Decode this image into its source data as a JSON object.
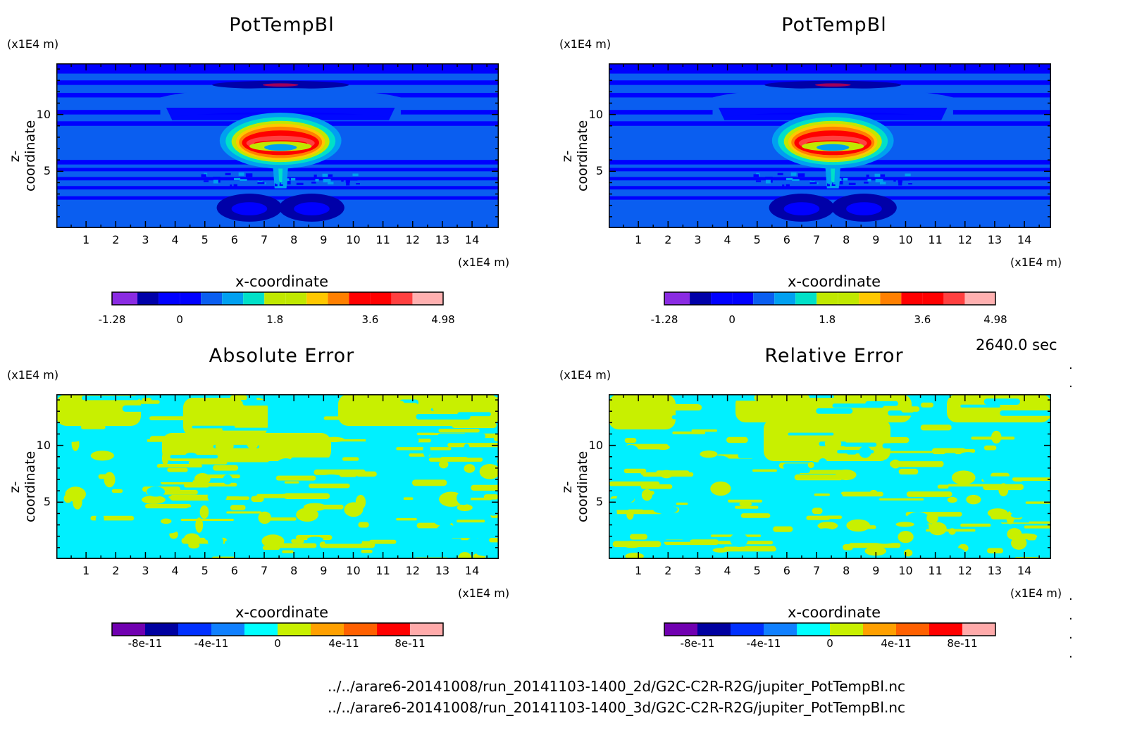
{
  "chart_data": [
    {
      "type": "heatmap",
      "title": "PotTempBl",
      "xlabel": "x-coordinate",
      "ylabel": "z-coordinate",
      "x_unit": "(x1E4 m)",
      "y_unit": "(x1E4 m)",
      "xlim": [
        0,
        14.9
      ],
      "ylim": [
        0,
        14.5
      ],
      "xticks": [
        1,
        2,
        3,
        4,
        5,
        6,
        7,
        8,
        9,
        10,
        11,
        12,
        13,
        14
      ],
      "yticks": [
        5,
        10
      ],
      "colorbar": {
        "levels": [
          -1.28,
          -0.8,
          -0.4,
          0,
          0.4,
          0.8,
          1.2,
          1.6,
          2.0,
          2.4,
          2.8,
          3.2,
          3.6,
          4.0,
          4.4,
          4.98
        ],
        "labels": [
          "-1.28",
          "0",
          "1.8",
          "3.6",
          "4.98"
        ],
        "label_values": [
          -1.28,
          0,
          1.8,
          3.6,
          4.98
        ]
      },
      "features": {
        "plume_center_x": 7.55,
        "plume_cap_z": 7.8,
        "plume_stem_z": [
          4,
          7
        ],
        "max": 4.98,
        "min": -1.28
      }
    },
    {
      "type": "heatmap",
      "title": "PotTempBl",
      "xlabel": "x-coordinate",
      "ylabel": "z-coordinate",
      "x_unit": "(x1E4 m)",
      "y_unit": "(x1E4 m)",
      "xlim": [
        0,
        14.9
      ],
      "ylim": [
        0,
        14.5
      ],
      "xticks": [
        1,
        2,
        3,
        4,
        5,
        6,
        7,
        8,
        9,
        10,
        11,
        12,
        13,
        14
      ],
      "yticks": [
        5,
        10
      ],
      "colorbar": {
        "levels": [
          -1.28,
          -0.8,
          -0.4,
          0,
          0.4,
          0.8,
          1.2,
          1.6,
          2.0,
          2.4,
          2.8,
          3.2,
          3.6,
          4.0,
          4.4,
          4.98
        ],
        "labels": [
          "-1.28",
          "0",
          "1.8",
          "3.6",
          "4.98"
        ],
        "label_values": [
          -1.28,
          0,
          1.8,
          3.6,
          4.98
        ]
      },
      "features": {
        "plume_center_x": 7.55,
        "plume_cap_z": 7.8,
        "plume_stem_z": [
          4,
          7
        ],
        "max": 4.98,
        "min": -1.28
      }
    },
    {
      "type": "heatmap",
      "title": "Absolute Error",
      "xlabel": "x-coordinate",
      "ylabel": "z-coordinate",
      "x_unit": "(x1E4 m)",
      "y_unit": "(x1E4 m)",
      "xlim": [
        0,
        14.9
      ],
      "ylim": [
        0,
        14.5
      ],
      "xticks": [
        1,
        2,
        3,
        4,
        5,
        6,
        7,
        8,
        9,
        10,
        11,
        12,
        13,
        14
      ],
      "yticks": [
        5,
        10
      ],
      "colorbar": {
        "levels": [
          -1e-10,
          -8e-11,
          -6e-11,
          -4e-11,
          -2e-11,
          0,
          2e-11,
          4e-11,
          6e-11,
          8e-11,
          1e-10
        ],
        "labels": [
          "-8e-11",
          "-4e-11",
          "0",
          "4e-11",
          "8e-11"
        ],
        "label_values": [
          -8e-11,
          -4e-11,
          0,
          4e-11,
          8e-11
        ]
      },
      "features": {
        "dominant_bins": [
          "-2e-11 to 0",
          "0 to 2e-11"
        ]
      }
    },
    {
      "type": "heatmap",
      "title": "Relative Error",
      "xlabel": "x-coordinate",
      "ylabel": "z-coordinate",
      "x_unit": "(x1E4 m)",
      "y_unit": "(x1E4 m)",
      "xlim": [
        0,
        14.9
      ],
      "ylim": [
        0,
        14.5
      ],
      "xticks": [
        1,
        2,
        3,
        4,
        5,
        6,
        7,
        8,
        9,
        10,
        11,
        12,
        13,
        14
      ],
      "yticks": [
        5,
        10
      ],
      "colorbar": {
        "levels": [
          -1e-10,
          -8e-11,
          -6e-11,
          -4e-11,
          -2e-11,
          0,
          2e-11,
          4e-11,
          6e-11,
          8e-11,
          1e-10
        ],
        "labels": [
          "-8e-11",
          "-4e-11",
          "0",
          "4e-11",
          "8e-11"
        ],
        "label_values": [
          -8e-11,
          -4e-11,
          0,
          4e-11,
          8e-11
        ]
      },
      "features": {
        "dominant_bins": [
          "-2e-11 to 0",
          "0 to 2e-11"
        ]
      }
    }
  ],
  "colors": {
    "temp_scale": [
      "#8a2be2",
      "#0000a8",
      "#0000ff",
      "#0a5ef0",
      "#00a0f0",
      "#00e0c8",
      "#c0e800",
      "#ffc800",
      "#ff8000",
      "#ff0000",
      "#ff4040",
      "#ffb0b0"
    ],
    "err_scale": [
      "#7000b0",
      "#0000a0",
      "#0030ff",
      "#1080ff",
      "#00ffff",
      "#c8f000",
      "#ffa000",
      "#ff6000",
      "#ff0000",
      "#ffaaaa"
    ],
    "err_cyan": "#00f0ff",
    "err_yellow": "#c8f000"
  },
  "time_label": "2640.0 sec",
  "files": [
    "../../arare6-20141008/run_20141103-1400_2d/G2C-C2R-R2G/jupiter_PotTempBl.nc",
    "../../arare6-20141008/run_20141103-1400_3d/G2C-C2R-R2G/jupiter_PotTempBl.nc"
  ]
}
